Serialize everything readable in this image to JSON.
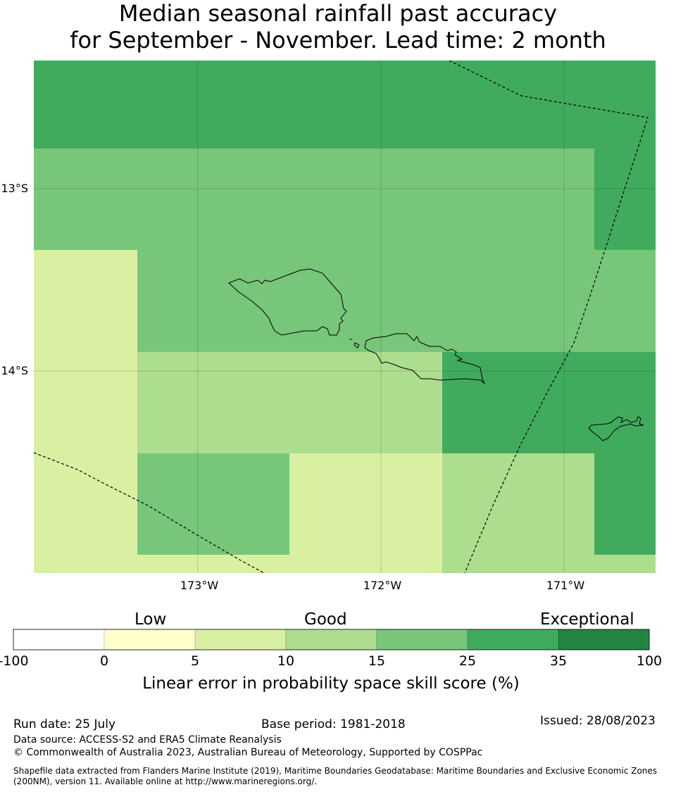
{
  "title_line1": "Median seasonal rainfall past accuracy",
  "title_line2": "for September - November. Lead time: 2 month",
  "map": {
    "lat_labels": [
      "13°S",
      "14°S"
    ],
    "lon_labels": [
      "173°W",
      "172°W",
      "171°W"
    ],
    "colors": {
      "cat_0_5": "#ffffcc",
      "cat_5_10": "#d9f0a3",
      "cat_10_15": "#addd8e",
      "cat_15_25": "#78c679",
      "cat_25_35": "#41ab5d",
      "cat_35_100": "#238443"
    }
  },
  "colorbar": {
    "categories": [
      "Low",
      "Good",
      "Exceptional"
    ],
    "ticks": [
      "-100",
      "0",
      "5",
      "10",
      "15",
      "25",
      "35",
      "100"
    ],
    "colors": [
      "#ffffff",
      "#ffffcc",
      "#d9f0a3",
      "#addd8e",
      "#78c679",
      "#41ab5d",
      "#238443"
    ],
    "label": "Linear error in probability space skill score (%)"
  },
  "footer": {
    "run_date": "Run date: 25 July",
    "base_period": "Base period: 1981-2018",
    "issued": "Issued: 28/08/2023",
    "data_source": "Data source: ACCESS-S2 and ERA5 Climate Reanalysis",
    "copyright": "© Commonwealth of Australia 2023, Australian Bureau of Meteorology, Supported by COSPPac",
    "shapefile_line1": "Shapefile data extracted from Flanders Marine Institute (2019), Maritime Boundaries Geodatabase: Maritime Boundaries and Exclusive Economic Zones",
    "shapefile_line2": "(200NM), version 11. Available online at http://www.marineregions.org/."
  }
}
